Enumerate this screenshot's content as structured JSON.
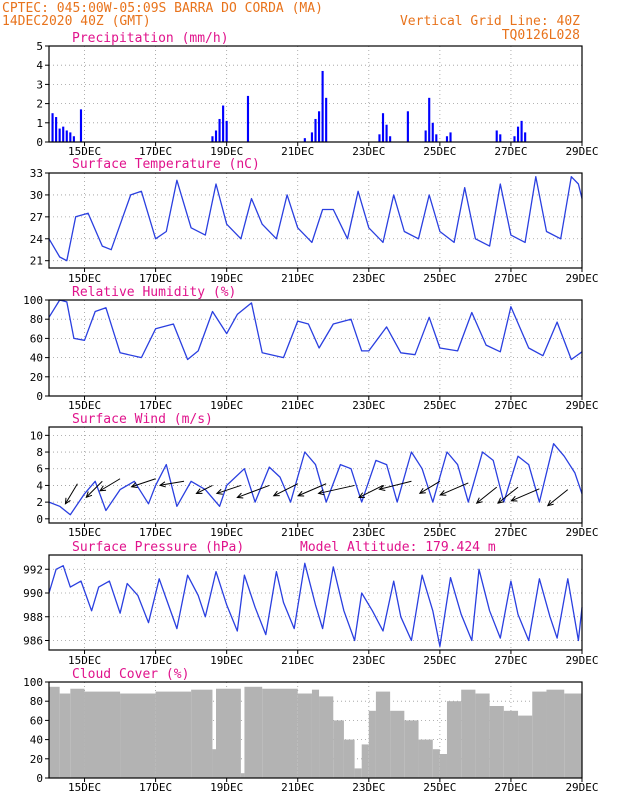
{
  "header": {
    "line1_left": "CPTEC:  045:00W-05:09S  BARRA DO CORDA (MA)",
    "line2_left": "14DEC2020 40Z (GMT)",
    "line2_right": "Vertical Grid Line: 40Z",
    "line3_right": "TQ0126L028"
  },
  "x_axis": {
    "tick_labels": [
      "15DEC",
      "17DEC",
      "19DEC",
      "21DEC",
      "23DEC",
      "25DEC",
      "27DEC",
      "29DEC"
    ],
    "range_days": [
      0,
      15
    ],
    "tick_positions_days": [
      1,
      3,
      5,
      7,
      9,
      11,
      13,
      15
    ]
  },
  "chart_data": [
    {
      "type": "bar",
      "title": "Precipitation (mm/h)",
      "ylim": [
        0,
        5
      ],
      "yticks": [
        0,
        1,
        2,
        3,
        4,
        5
      ],
      "color": "#0000ff",
      "bars": [
        [
          0.1,
          1.5
        ],
        [
          0.2,
          1.3
        ],
        [
          0.3,
          0.7
        ],
        [
          0.4,
          0.8
        ],
        [
          0.5,
          0.6
        ],
        [
          0.6,
          0.5
        ],
        [
          0.7,
          0.3
        ],
        [
          0.9,
          1.7
        ],
        [
          4.6,
          0.3
        ],
        [
          4.7,
          0.6
        ],
        [
          4.8,
          1.2
        ],
        [
          4.9,
          1.9
        ],
        [
          5.0,
          1.1
        ],
        [
          5.6,
          2.4
        ],
        [
          7.2,
          0.2
        ],
        [
          7.4,
          0.5
        ],
        [
          7.5,
          1.2
        ],
        [
          7.6,
          1.6
        ],
        [
          7.7,
          3.7
        ],
        [
          7.8,
          2.3
        ],
        [
          9.3,
          0.4
        ],
        [
          9.4,
          1.5
        ],
        [
          9.5,
          0.9
        ],
        [
          9.6,
          0.3
        ],
        [
          10.1,
          1.6
        ],
        [
          10.6,
          0.6
        ],
        [
          10.7,
          2.3
        ],
        [
          10.8,
          1.0
        ],
        [
          10.9,
          0.4
        ],
        [
          11.2,
          0.3
        ],
        [
          11.3,
          0.5
        ],
        [
          12.6,
          0.6
        ],
        [
          12.7,
          0.4
        ],
        [
          13.1,
          0.3
        ],
        [
          13.2,
          0.8
        ],
        [
          13.3,
          1.1
        ],
        [
          13.4,
          0.5
        ]
      ]
    },
    {
      "type": "line",
      "title": "Surface Temperature (nC)",
      "ylim": [
        20,
        33
      ],
      "yticks": [
        21,
        24,
        27,
        30,
        33
      ],
      "color": "#2a3fe0",
      "x": [
        0.0,
        0.3,
        0.5,
        0.75,
        1.1,
        1.5,
        1.75,
        2.3,
        2.6,
        3.0,
        3.3,
        3.6,
        4.0,
        4.4,
        4.7,
        5.0,
        5.4,
        5.7,
        6.0,
        6.4,
        6.7,
        7.0,
        7.4,
        7.7,
        8.0,
        8.4,
        8.7,
        9.0,
        9.4,
        9.7,
        10.0,
        10.4,
        10.7,
        11.0,
        11.4,
        11.7,
        12.0,
        12.4,
        12.7,
        13.0,
        13.4,
        13.7,
        14.0,
        14.4,
        14.7,
        14.9,
        15.0
      ],
      "y": [
        24.0,
        21.5,
        21.0,
        27.0,
        27.5,
        23.0,
        22.5,
        30.0,
        30.5,
        24.0,
        25.0,
        32.0,
        25.5,
        24.5,
        31.5,
        26.0,
        24.0,
        29.5,
        26.0,
        24.0,
        30.0,
        25.5,
        23.5,
        28.0,
        28.0,
        24.0,
        30.5,
        25.5,
        23.5,
        30.0,
        25.0,
        24.0,
        30.0,
        25.0,
        23.5,
        31.0,
        24.0,
        23.0,
        31.5,
        24.5,
        23.5,
        32.5,
        25.0,
        24.0,
        32.5,
        31.5,
        29.5
      ]
    },
    {
      "type": "line",
      "title": "Relative Humidity (%)",
      "ylim": [
        0,
        100
      ],
      "yticks": [
        0,
        20,
        40,
        60,
        80,
        100
      ],
      "color": "#2a3fe0",
      "x": [
        0.0,
        0.3,
        0.5,
        0.7,
        1.0,
        1.3,
        1.6,
        2.0,
        2.6,
        3.0,
        3.5,
        3.9,
        4.2,
        4.6,
        5.0,
        5.3,
        5.7,
        6.0,
        6.6,
        7.0,
        7.3,
        7.6,
        8.0,
        8.5,
        8.8,
        9.0,
        9.5,
        9.9,
        10.3,
        10.7,
        11.0,
        11.5,
        11.9,
        12.3,
        12.7,
        13.0,
        13.5,
        13.9,
        14.3,
        14.7,
        15.0
      ],
      "y": [
        82,
        100,
        98,
        60,
        58,
        88,
        92,
        45,
        40,
        70,
        75,
        38,
        47,
        88,
        65,
        85,
        97,
        45,
        40,
        78,
        75,
        50,
        75,
        80,
        47,
        47,
        72,
        45,
        43,
        82,
        50,
        47,
        87,
        53,
        46,
        93,
        50,
        42,
        77,
        38,
        46
      ]
    },
    {
      "type": "line",
      "title": "Surface Wind (m/s)",
      "ylim": [
        -0.5,
        11
      ],
      "yticks": [
        0,
        2,
        4,
        6,
        8,
        10
      ],
      "color": "#2a3fe0",
      "x": [
        0.0,
        0.3,
        0.6,
        1.0,
        1.3,
        1.6,
        2.0,
        2.4,
        2.8,
        3.0,
        3.3,
        3.6,
        4.0,
        4.4,
        4.8,
        5.0,
        5.5,
        5.8,
        6.2,
        6.5,
        6.8,
        7.2,
        7.5,
        7.8,
        8.2,
        8.5,
        8.8,
        9.2,
        9.5,
        9.8,
        10.2,
        10.5,
        10.8,
        11.2,
        11.5,
        11.8,
        12.2,
        12.5,
        12.8,
        13.2,
        13.5,
        13.8,
        14.2,
        14.5,
        14.8,
        15.0
      ],
      "y": [
        2.0,
        1.5,
        0.5,
        3.0,
        4.5,
        1.0,
        3.5,
        4.5,
        1.8,
        4.0,
        6.5,
        1.5,
        4.5,
        3.5,
        1.5,
        4.0,
        6.0,
        2.0,
        6.2,
        5.0,
        2.0,
        8.0,
        6.5,
        2.0,
        6.5,
        6.0,
        2.0,
        7.0,
        6.5,
        2.0,
        8.0,
        6.0,
        2.0,
        8.0,
        6.5,
        2.0,
        8.0,
        7.0,
        2.0,
        7.5,
        6.5,
        2.0,
        9.0,
        7.5,
        5.5,
        3.0
      ],
      "vectors": [
        {
          "x": 0.8,
          "y": 4.2,
          "dx": -3,
          "dy": -5
        },
        {
          "x": 1.5,
          "y": 4.5,
          "dx": -4,
          "dy": -4
        },
        {
          "x": 2.0,
          "y": 4.8,
          "dx": -5,
          "dy": -3
        },
        {
          "x": 3.0,
          "y": 4.8,
          "dx": -6,
          "dy": -2
        },
        {
          "x": 3.8,
          "y": 4.5,
          "dx": -6,
          "dy": -1
        },
        {
          "x": 4.6,
          "y": 4.0,
          "dx": -4,
          "dy": -2
        },
        {
          "x": 5.4,
          "y": 4.0,
          "dx": -6,
          "dy": -2
        },
        {
          "x": 6.2,
          "y": 4.0,
          "dx": -8,
          "dy": -3
        },
        {
          "x": 7.0,
          "y": 4.2,
          "dx": -6,
          "dy": -3
        },
        {
          "x": 7.8,
          "y": 4.2,
          "dx": -7,
          "dy": -3
        },
        {
          "x": 8.6,
          "y": 4.0,
          "dx": -9,
          "dy": -2
        },
        {
          "x": 9.4,
          "y": 4.0,
          "dx": -6,
          "dy": -3
        },
        {
          "x": 10.2,
          "y": 4.5,
          "dx": -8,
          "dy": -2
        },
        {
          "x": 11.0,
          "y": 4.5,
          "dx": -5,
          "dy": -3
        },
        {
          "x": 11.8,
          "y": 4.3,
          "dx": -7,
          "dy": -3
        },
        {
          "x": 12.6,
          "y": 3.8,
          "dx": -5,
          "dy": -4
        },
        {
          "x": 13.2,
          "y": 3.8,
          "dx": -5,
          "dy": -4
        },
        {
          "x": 13.8,
          "y": 3.6,
          "dx": -7,
          "dy": -3
        },
        {
          "x": 14.6,
          "y": 3.5,
          "dx": -5,
          "dy": -4
        }
      ]
    },
    {
      "type": "line",
      "title": "Surface Pressure (hPa)",
      "subtitle": "Model Altitude: 179.424 m",
      "ylim": [
        985.2,
        993.2
      ],
      "yticks": [
        986,
        988,
        990,
        992
      ],
      "color": "#2a3fe0",
      "x": [
        0.0,
        0.2,
        0.4,
        0.6,
        0.9,
        1.2,
        1.4,
        1.7,
        2.0,
        2.2,
        2.5,
        2.8,
        3.1,
        3.3,
        3.6,
        3.9,
        4.2,
        4.4,
        4.7,
        5.0,
        5.3,
        5.5,
        5.8,
        6.1,
        6.4,
        6.6,
        6.9,
        7.2,
        7.5,
        7.7,
        8.0,
        8.3,
        8.6,
        8.8,
        9.1,
        9.4,
        9.7,
        9.9,
        10.2,
        10.5,
        10.8,
        11.0,
        11.3,
        11.6,
        11.9,
        12.1,
        12.4,
        12.7,
        13.0,
        13.2,
        13.5,
        13.8,
        14.1,
        14.3,
        14.6,
        14.9,
        15.0
      ],
      "y": [
        990.0,
        992.0,
        992.3,
        990.5,
        991.0,
        988.5,
        990.5,
        991.0,
        988.3,
        990.8,
        989.8,
        987.5,
        991.2,
        989.5,
        987.0,
        991.5,
        989.8,
        988.0,
        991.8,
        989.0,
        986.8,
        991.5,
        988.8,
        986.5,
        991.8,
        989.2,
        987.0,
        992.5,
        989.0,
        987.0,
        992.2,
        988.5,
        986.0,
        990.0,
        988.5,
        986.8,
        991.0,
        988.0,
        986.0,
        991.5,
        988.5,
        985.5,
        991.3,
        988.2,
        986.0,
        992.0,
        988.5,
        986.2,
        991.0,
        988.2,
        986.0,
        991.2,
        988.0,
        986.2,
        991.2,
        986.0,
        988.8
      ]
    },
    {
      "type": "bar",
      "title": "Cloud Cover (%)",
      "ylim": [
        0,
        100
      ],
      "yticks": [
        0,
        20,
        40,
        60,
        80,
        100
      ],
      "color": "#b3b3b3",
      "segments": [
        [
          0.0,
          0.3,
          95
        ],
        [
          0.3,
          0.6,
          88
        ],
        [
          0.6,
          1.0,
          93
        ],
        [
          1.0,
          2.0,
          90
        ],
        [
          2.0,
          3.0,
          88
        ],
        [
          3.0,
          4.0,
          90
        ],
        [
          4.0,
          4.6,
          92
        ],
        [
          4.6,
          4.7,
          30
        ],
        [
          4.7,
          5.4,
          93
        ],
        [
          5.4,
          5.5,
          5
        ],
        [
          5.5,
          6.0,
          95
        ],
        [
          6.0,
          7.0,
          93
        ],
        [
          7.0,
          7.4,
          88
        ],
        [
          7.4,
          7.6,
          92
        ],
        [
          7.6,
          8.0,
          85
        ],
        [
          8.0,
          8.3,
          60
        ],
        [
          8.3,
          8.6,
          40
        ],
        [
          8.6,
          8.8,
          10
        ],
        [
          8.8,
          9.0,
          35
        ],
        [
          9.0,
          9.2,
          70
        ],
        [
          9.2,
          9.6,
          90
        ],
        [
          9.6,
          10.0,
          70
        ],
        [
          10.0,
          10.4,
          60
        ],
        [
          10.4,
          10.8,
          40
        ],
        [
          10.8,
          11.0,
          30
        ],
        [
          11.0,
          11.2,
          25
        ],
        [
          11.2,
          11.6,
          80
        ],
        [
          11.6,
          12.0,
          92
        ],
        [
          12.0,
          12.4,
          88
        ],
        [
          12.4,
          12.8,
          75
        ],
        [
          12.8,
          13.2,
          70
        ],
        [
          13.2,
          13.6,
          65
        ],
        [
          13.6,
          14.0,
          90
        ],
        [
          14.0,
          14.5,
          92
        ],
        [
          14.5,
          15.0,
          88
        ]
      ]
    }
  ]
}
